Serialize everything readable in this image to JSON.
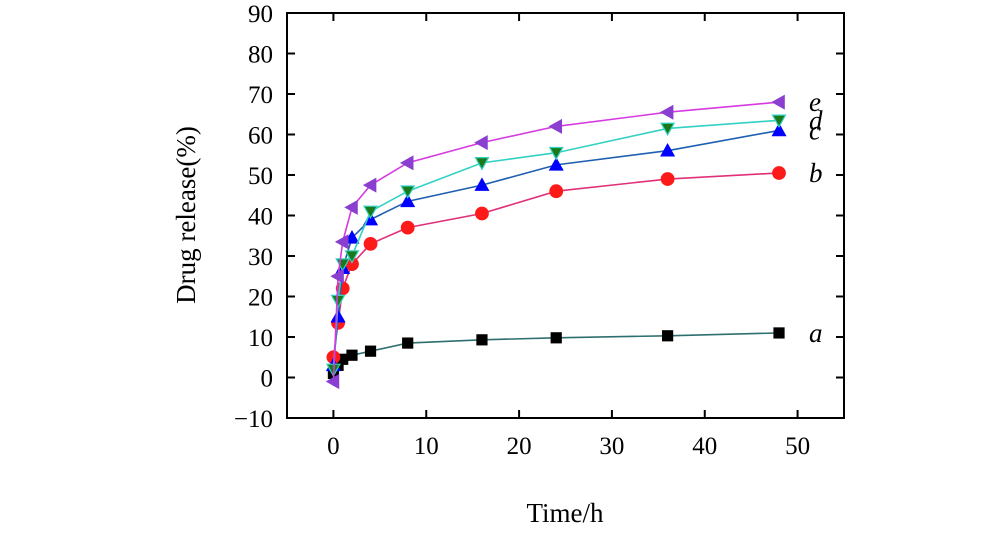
{
  "chart_data": {
    "type": "line",
    "xlabel": "Time/h",
    "ylabel": "Drug release(%)",
    "xlim": [
      -5,
      55
    ],
    "ylim": [
      -10,
      90
    ],
    "x_ticks": [
      0,
      10,
      20,
      30,
      40,
      50
    ],
    "y_ticks": [
      -10,
      0,
      10,
      20,
      30,
      40,
      50,
      60,
      70,
      80,
      90
    ],
    "x_tick_labels": [
      "0",
      "10",
      "20",
      "30",
      "40",
      "50"
    ],
    "y_tick_labels": [
      "−10",
      "0",
      "10",
      "20",
      "30",
      "40",
      "50",
      "60",
      "70",
      "80",
      "90"
    ],
    "grid": false,
    "series": [
      {
        "label": "a",
        "marker": "square",
        "color": "#2f6f6f",
        "marker_color": "#000000",
        "x": [
          0,
          0.5,
          1,
          2,
          4,
          8,
          16,
          24,
          36,
          48
        ],
        "y": [
          1.0,
          3.0,
          4.5,
          5.5,
          6.5,
          8.5,
          9.3,
          9.8,
          10.3,
          11.0
        ]
      },
      {
        "label": "b",
        "marker": "circle",
        "color": "#e0307a",
        "marker_color": "#ff1a1a",
        "x": [
          0,
          0.5,
          1,
          2,
          4,
          8,
          16,
          24,
          36,
          48
        ],
        "y": [
          5.0,
          13.5,
          22.0,
          28.0,
          33.0,
          37.0,
          40.5,
          46.0,
          49.0,
          50.5
        ]
      },
      {
        "label": "c",
        "marker": "triangle-up",
        "color": "#1f5fb0",
        "marker_color": "#0000ff",
        "x": [
          0,
          0.5,
          1,
          2,
          4,
          8,
          16,
          24,
          36,
          48
        ],
        "y": [
          3.0,
          15.0,
          27.0,
          34.5,
          39.0,
          43.5,
          47.5,
          52.5,
          56.0,
          61.0
        ]
      },
      {
        "label": "d",
        "marker": "triangle-down",
        "color": "#33d1c4",
        "marker_color": "#1a7a1a",
        "x": [
          0,
          0.5,
          1,
          2,
          4,
          8,
          16,
          24,
          36,
          48
        ],
        "y": [
          2.0,
          19.0,
          28.0,
          30.0,
          41.0,
          46.0,
          53.0,
          55.5,
          61.5,
          63.5
        ]
      },
      {
        "label": "e",
        "marker": "triangle-left",
        "color": "#d63ae0",
        "marker_color": "#8a3fd0",
        "x": [
          0,
          0.5,
          1,
          2,
          4,
          8,
          16,
          24,
          36,
          48
        ],
        "y": [
          -1.0,
          25.0,
          33.5,
          42.0,
          47.5,
          53.0,
          58.0,
          62.0,
          65.5,
          68.0
        ]
      }
    ]
  }
}
